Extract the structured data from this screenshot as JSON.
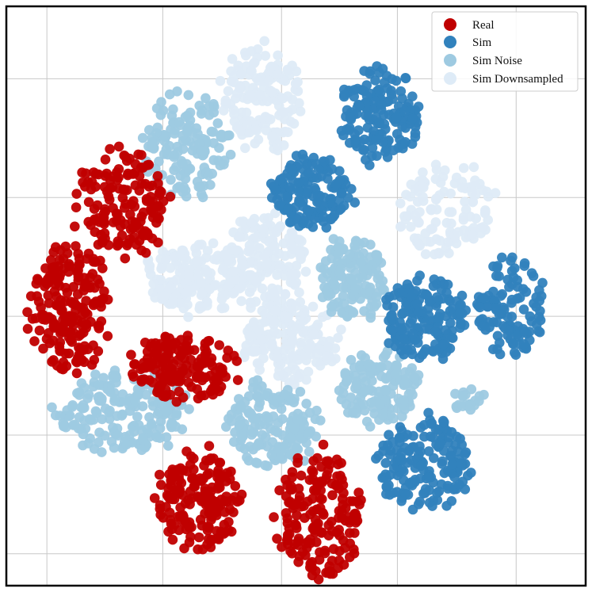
{
  "chart_data": {
    "type": "scatter",
    "title": "",
    "xlabel": "",
    "ylabel": "",
    "xlim": [
      0,
      100
    ],
    "ylim": [
      0,
      100
    ],
    "grid": true,
    "x_gridlines": [
      7,
      27,
      47.5,
      67.5,
      88
    ],
    "y_gridlines": [
      5.5,
      26,
      46.5,
      67,
      87.5
    ],
    "legend_position": "top-right",
    "series": [
      {
        "name": "Real",
        "color": "#c00000",
        "clusters": [
          {
            "cx": 20,
            "cy": 66,
            "rx": 8,
            "ry": 9,
            "n": 150
          },
          {
            "cx": 11,
            "cy": 48,
            "rx": 7,
            "ry": 11,
            "n": 190
          },
          {
            "cx": 31,
            "cy": 38,
            "rx": 9,
            "ry": 6,
            "n": 160
          },
          {
            "cx": 33,
            "cy": 15,
            "rx": 7,
            "ry": 9,
            "n": 170
          },
          {
            "cx": 54,
            "cy": 12,
            "rx": 7,
            "ry": 11,
            "n": 170
          }
        ]
      },
      {
        "name": "Sim",
        "color": "#3182bd",
        "clusters": [
          {
            "cx": 64,
            "cy": 81,
            "rx": 7,
            "ry": 8,
            "n": 160
          },
          {
            "cx": 53,
            "cy": 68,
            "rx": 7,
            "ry": 6,
            "n": 150
          },
          {
            "cx": 72,
            "cy": 46,
            "rx": 7,
            "ry": 7,
            "n": 170
          },
          {
            "cx": 87,
            "cy": 48,
            "rx": 6,
            "ry": 9,
            "n": 110
          },
          {
            "cx": 72,
            "cy": 21,
            "rx": 8,
            "ry": 8,
            "n": 170
          }
        ]
      },
      {
        "name": "Sim Noise",
        "color": "#9ecae1",
        "clusters": [
          {
            "cx": 31,
            "cy": 76,
            "rx": 7,
            "ry": 9,
            "n": 140
          },
          {
            "cx": 60,
            "cy": 53,
            "rx": 6,
            "ry": 7,
            "n": 140
          },
          {
            "cx": 64,
            "cy": 34,
            "rx": 7,
            "ry": 6,
            "n": 140
          },
          {
            "cx": 46,
            "cy": 28,
            "rx": 8,
            "ry": 7,
            "n": 160
          },
          {
            "cx": 20,
            "cy": 30,
            "rx": 11,
            "ry": 7,
            "n": 180
          },
          {
            "cx": 80,
            "cy": 32,
            "rx": 3,
            "ry": 2,
            "n": 20
          }
        ]
      },
      {
        "name": "Sim Downsampled",
        "color": "#deebf7",
        "clusters": [
          {
            "cx": 44,
            "cy": 84,
            "rx": 7,
            "ry": 9,
            "n": 150
          },
          {
            "cx": 76,
            "cy": 65,
            "rx": 8,
            "ry": 8,
            "n": 120
          },
          {
            "cx": 32,
            "cy": 53,
            "rx": 8,
            "ry": 6,
            "n": 160
          },
          {
            "cx": 45,
            "cy": 56,
            "rx": 7,
            "ry": 8,
            "n": 170
          },
          {
            "cx": 49,
            "cy": 42,
            "rx": 8,
            "ry": 7,
            "n": 170
          }
        ]
      }
    ]
  }
}
